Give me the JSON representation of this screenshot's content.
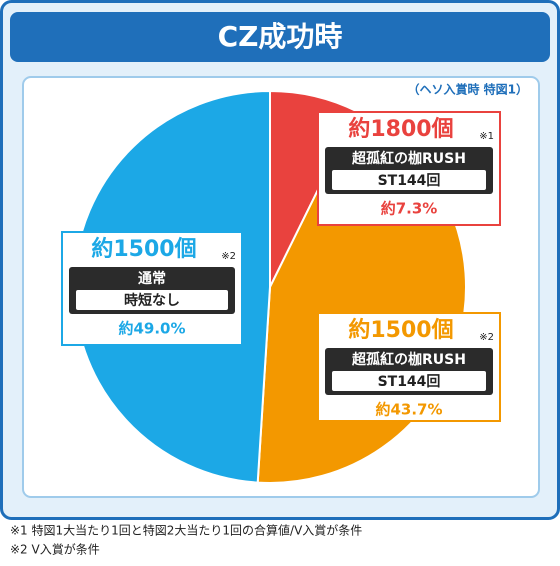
{
  "chart_data": {
    "type": "pie",
    "title": "CZ成功時",
    "subtitle": "（ヘソ入賞時 特図1）",
    "values": [
      7.3,
      43.7,
      49.0
    ],
    "value_labels": [
      "約7.3%",
      "約43.7%",
      "約49.0%"
    ],
    "colors": [
      "#e9423e",
      "#f39800",
      "#1ca8e6"
    ],
    "slices": [
      {
        "payout": "約1800個",
        "note": "※1",
        "mode": "超孤紅の枷RUSH",
        "detail": "ST144回"
      },
      {
        "payout": "約1500個",
        "note": "※2",
        "mode": "超孤紅の枷RUSH",
        "detail": "ST144回"
      },
      {
        "payout": "約1500個",
        "note": "※2",
        "mode": "通常",
        "detail": "時短なし"
      }
    ],
    "footnotes": [
      "※1 特図1大当たり1回と特図2大当たり1回の合算値/V入賞が条件",
      "※2 V入賞が条件"
    ]
  }
}
